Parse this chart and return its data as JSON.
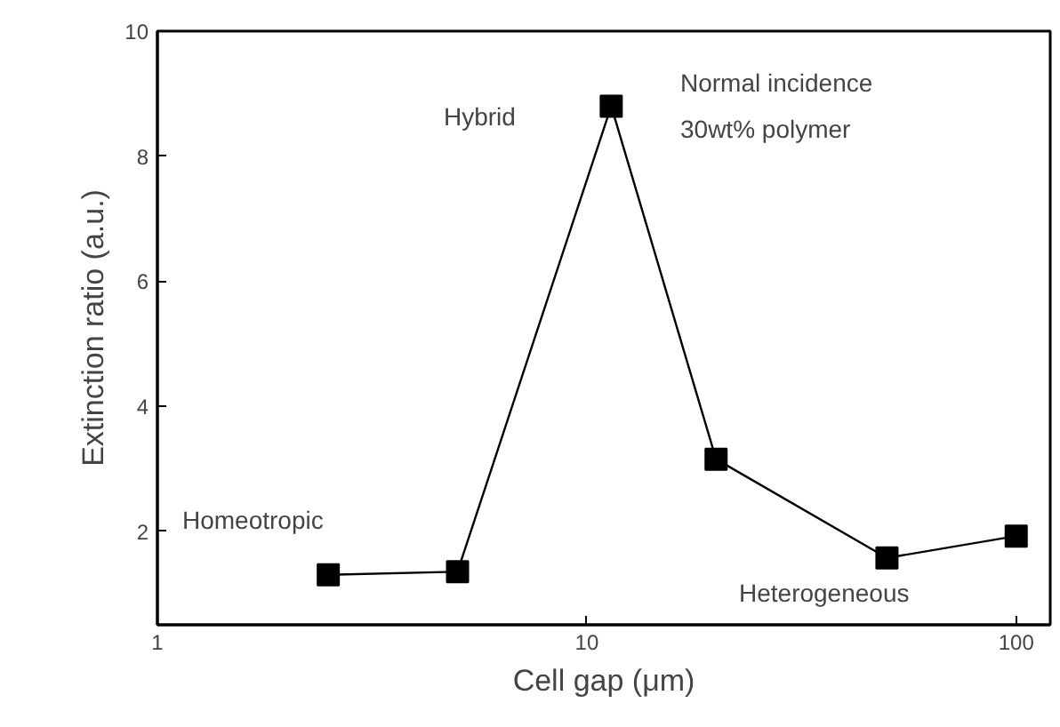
{
  "chart_data": {
    "type": "line",
    "xlabel": "Cell gap (μm)",
    "ylabel": "Extinction ratio (a.u.)",
    "x": [
      2.5,
      5,
      11.4,
      20,
      50,
      100
    ],
    "series": [
      {
        "color": "#000000",
        "values": [
          1.3,
          1.35,
          8.8,
          3.15,
          1.57,
          1.92
        ]
      }
    ],
    "log": "x",
    "xlim": [
      1,
      120
    ],
    "xticks": [
      1,
      10,
      100
    ],
    "ylim": [
      0.5,
      10
    ],
    "yticks": [
      2,
      4,
      6,
      8,
      10
    ],
    "marker": "square",
    "line_style": "solid",
    "grid": false,
    "annotations": [
      "Homeotropic",
      "Hybrid",
      "Heterogeneous",
      "Normal incidence",
      "30wt% polymer"
    ]
  }
}
